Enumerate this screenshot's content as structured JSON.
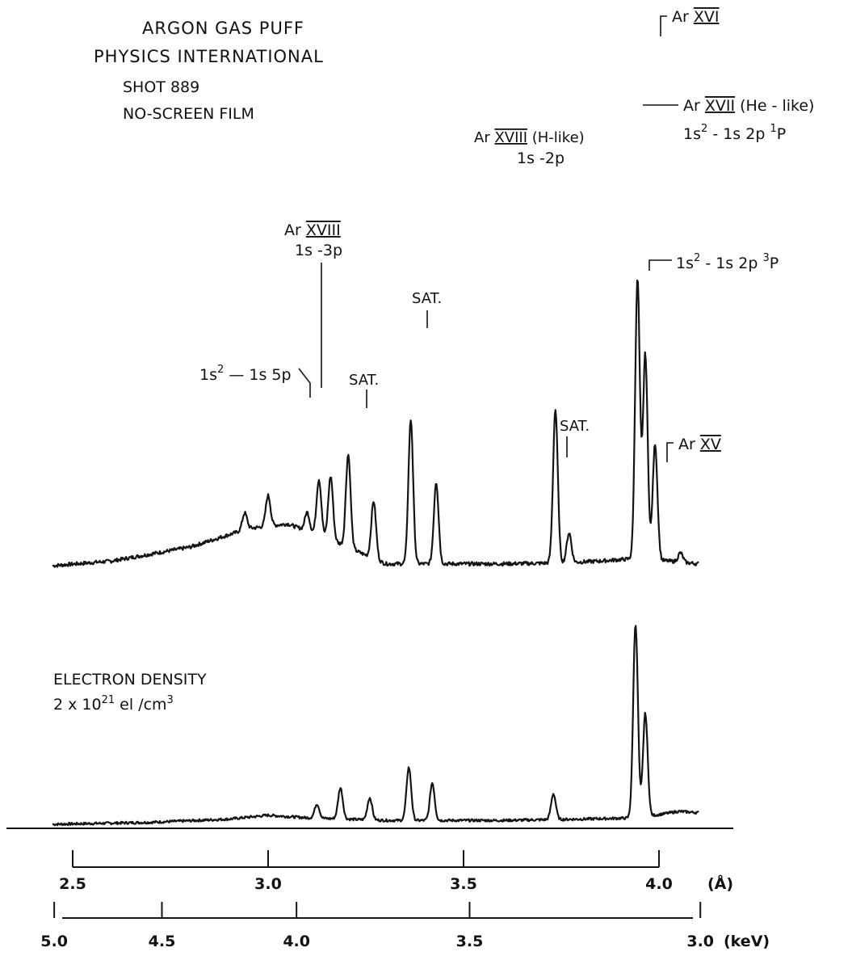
{
  "chart_data": {
    "type": "line",
    "title_lines": [
      "ARGON GAS PUFF",
      "PHYSICS INTERNATIONAL"
    ],
    "subtitle_lines": [
      "SHOT 889",
      "NO-SCREEN FILM"
    ],
    "density_note": {
      "line1": "ELECTRON DENSITY",
      "line2_prefix": "2 x 10",
      "line2_exp": "21",
      "line2_unit": " el /cm",
      "line2_unit_exp": "3"
    },
    "x_axis_angstrom": {
      "unit": "(Å)",
      "range": [
        2.5,
        4.0
      ],
      "ticks": [
        {
          "value": 2.5,
          "label": "2.5"
        },
        {
          "value": 3.0,
          "label": "3.0"
        },
        {
          "value": 3.5,
          "label": "3.5"
        },
        {
          "value": 4.0,
          "label": "4.0"
        }
      ]
    },
    "x_axis_kev": {
      "unit": "(keV)",
      "ticks": [
        {
          "value": 5.0,
          "label": "5.0"
        },
        {
          "value": 4.5,
          "label": "4.5"
        },
        {
          "value": 4.0,
          "label": "4.0"
        },
        {
          "value": 3.5,
          "label": "3.5"
        },
        {
          "value": 3.0,
          "label": "3.0"
        }
      ]
    },
    "series": [
      {
        "trace": "measured",
        "baseline": 0.0,
        "x": [
          2.45,
          2.6,
          2.8,
          2.95,
          3.05,
          3.15,
          3.3,
          3.6,
          3.75,
          3.85,
          3.95,
          4.1
        ],
        "y": [
          0.0,
          0.05,
          0.2,
          0.4,
          0.45,
          0.3,
          0.02,
          0.02,
          0.03,
          0.05,
          0.08,
          0.02
        ],
        "peaks": [
          {
            "x": 2.94,
            "h": 0.18
          },
          {
            "x": 3.0,
            "h": 0.33
          },
          {
            "x": 3.1,
            "h": 0.2
          },
          {
            "x": 3.13,
            "h": 0.6
          },
          {
            "x": 3.16,
            "h": 0.68
          },
          {
            "x": 3.205,
            "h": 1.0
          },
          {
            "x": 3.27,
            "h": 0.62
          },
          {
            "x": 3.365,
            "h": 1.55
          },
          {
            "x": 3.43,
            "h": 0.88
          },
          {
            "x": 3.735,
            "h": 1.65
          },
          {
            "x": 3.77,
            "h": 0.32
          },
          {
            "x": 3.945,
            "h": 3.0
          },
          {
            "x": 3.965,
            "h": 2.2
          },
          {
            "x": 3.99,
            "h": 1.25
          },
          {
            "x": 4.055,
            "h": 0.1
          }
        ]
      },
      {
        "trace": "calculated",
        "baseline": 0.0,
        "x": [
          2.45,
          2.7,
          2.9,
          3.0,
          3.1,
          3.3,
          3.6,
          3.8,
          3.95,
          4.05,
          4.1
        ],
        "y": [
          0.0,
          0.03,
          0.08,
          0.14,
          0.1,
          0.06,
          0.06,
          0.08,
          0.1,
          0.2,
          0.18
        ],
        "peaks": [
          {
            "x": 3.125,
            "h": 0.22
          },
          {
            "x": 3.185,
            "h": 0.48
          },
          {
            "x": 3.26,
            "h": 0.34
          },
          {
            "x": 3.36,
            "h": 0.82
          },
          {
            "x": 3.42,
            "h": 0.58
          },
          {
            "x": 3.73,
            "h": 0.4
          },
          {
            "x": 3.94,
            "h": 3.0
          },
          {
            "x": 3.965,
            "h": 1.6
          }
        ]
      }
    ],
    "annotations": [
      {
        "id": "ar16",
        "text": "Ar ",
        "roman": "XVI",
        "suffix": ""
      },
      {
        "id": "ar17",
        "text": "Ar ",
        "roman": "XVII",
        "suffix": " (He - like)"
      },
      {
        "id": "ar17_1p",
        "text": "1s",
        "sup1": "2",
        "mid": " - 1s 2p  ",
        "sup2": "1",
        "end": "P"
      },
      {
        "id": "ar18_h",
        "text": "Ar ",
        "roman": "XVIII",
        "suffix": " (H-like)"
      },
      {
        "id": "ar18_h_tr",
        "text": "1s -2p"
      },
      {
        "id": "ar17_3p",
        "text": "1s",
        "sup1": "2",
        "mid": " - 1s 2p  ",
        "sup2": "3",
        "end": "P"
      },
      {
        "id": "ar18_3p",
        "text": "Ar ",
        "roman": "XVIII",
        "suffix": ""
      },
      {
        "id": "ar18_3p_tr",
        "text": "1s -3p"
      },
      {
        "id": "sat1",
        "text": "SAT."
      },
      {
        "id": "sat2",
        "text": "SAT."
      },
      {
        "id": "sat3",
        "text": "SAT."
      },
      {
        "id": "ar17_5p",
        "text": "1s",
        "sup1": "2",
        "mid": " — 1s 5p",
        "sup2": "",
        "end": ""
      },
      {
        "id": "ar15",
        "text": "Ar ",
        "roman": "XV",
        "suffix": ""
      }
    ]
  }
}
